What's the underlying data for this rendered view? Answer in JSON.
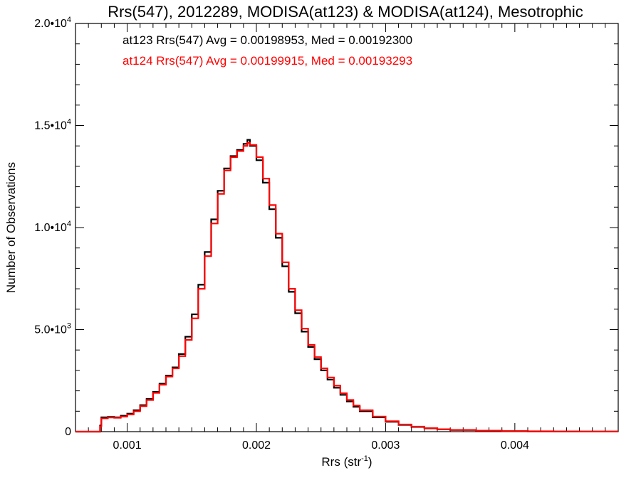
{
  "chart_data": {
    "type": "line",
    "title": "Rrs(547), 2012289, MODISA(at123) & MODISA(at124), Mesotrophic",
    "xlabel": "Rrs (str",
    "xlabel_sup": "-1",
    "xlabel_close": ")",
    "ylabel": "Number of Observations",
    "xlim": [
      0.0006,
      0.0048
    ],
    "ylim": [
      0,
      20000
    ],
    "x_ticks": [
      {
        "value": 0.001,
        "label": "0.001"
      },
      {
        "value": 0.002,
        "label": "0.002"
      },
      {
        "value": 0.003,
        "label": "0.003"
      },
      {
        "value": 0.004,
        "label": "0.004"
      }
    ],
    "y_ticks": [
      {
        "value": 0,
        "mant": "0",
        "exp": ""
      },
      {
        "value": 5000,
        "mant": "5.0•10",
        "exp": "3"
      },
      {
        "value": 10000,
        "mant": "1.0•10",
        "exp": "4"
      },
      {
        "value": 15000,
        "mant": "1.5•10",
        "exp": "4"
      },
      {
        "value": 20000,
        "mant": "2.0•10",
        "exp": "4"
      }
    ],
    "annotations": [
      {
        "text": "at123 Rrs(547) Avg = 0.00198953, Med = 0.00192300",
        "color": "#000000"
      },
      {
        "text": "at124 Rrs(547) Avg = 0.00199915, Med = 0.00193293",
        "color": "#ff0000"
      }
    ],
    "series": [
      {
        "color": "#000000",
        "points": [
          [
            0.0006,
            0
          ],
          [
            0.00078,
            0
          ],
          [
            0.00079,
            300
          ],
          [
            0.0008,
            700
          ],
          [
            0.00085,
            720
          ],
          [
            0.0009,
            700
          ],
          [
            0.00095,
            780
          ],
          [
            0.001,
            880
          ],
          [
            0.00105,
            1050
          ],
          [
            0.0011,
            1300
          ],
          [
            0.00115,
            1600
          ],
          [
            0.0012,
            1950
          ],
          [
            0.00125,
            2350
          ],
          [
            0.0013,
            2750
          ],
          [
            0.00135,
            3150
          ],
          [
            0.0014,
            3800
          ],
          [
            0.00145,
            4650
          ],
          [
            0.0015,
            5750
          ],
          [
            0.00155,
            7200
          ],
          [
            0.0016,
            8800
          ],
          [
            0.00165,
            10400
          ],
          [
            0.0017,
            11800
          ],
          [
            0.00175,
            12900
          ],
          [
            0.0018,
            13500
          ],
          [
            0.00185,
            13800
          ],
          [
            0.0019,
            14100
          ],
          [
            0.00193,
            14300
          ],
          [
            0.00195,
            14000
          ],
          [
            0.002,
            13300
          ],
          [
            0.00205,
            12200
          ],
          [
            0.0021,
            10900
          ],
          [
            0.00215,
            9500
          ],
          [
            0.0022,
            8100
          ],
          [
            0.00225,
            6850
          ],
          [
            0.0023,
            5800
          ],
          [
            0.00235,
            4900
          ],
          [
            0.0024,
            4150
          ],
          [
            0.00245,
            3550
          ],
          [
            0.0025,
            3000
          ],
          [
            0.00255,
            2550
          ],
          [
            0.0026,
            2150
          ],
          [
            0.00265,
            1800
          ],
          [
            0.0027,
            1480
          ],
          [
            0.00275,
            1220
          ],
          [
            0.0028,
            1000
          ],
          [
            0.0029,
            700
          ],
          [
            0.003,
            480
          ],
          [
            0.0031,
            330
          ],
          [
            0.0032,
            230
          ],
          [
            0.0033,
            160
          ],
          [
            0.0034,
            115
          ],
          [
            0.0035,
            80
          ],
          [
            0.0037,
            45
          ],
          [
            0.0039,
            25
          ],
          [
            0.0041,
            15
          ],
          [
            0.0043,
            8
          ],
          [
            0.0045,
            5
          ],
          [
            0.0048,
            2
          ]
        ]
      },
      {
        "color": "#ff0000",
        "points": [
          [
            0.0006,
            0
          ],
          [
            0.00078,
            0
          ],
          [
            0.00079,
            250
          ],
          [
            0.0008,
            650
          ],
          [
            0.00085,
            690
          ],
          [
            0.0009,
            680
          ],
          [
            0.00095,
            740
          ],
          [
            0.001,
            840
          ],
          [
            0.00105,
            1000
          ],
          [
            0.0011,
            1250
          ],
          [
            0.00115,
            1550
          ],
          [
            0.0012,
            1900
          ],
          [
            0.00125,
            2300
          ],
          [
            0.0013,
            2700
          ],
          [
            0.00135,
            3100
          ],
          [
            0.0014,
            3700
          ],
          [
            0.00145,
            4500
          ],
          [
            0.0015,
            5550
          ],
          [
            0.00155,
            7000
          ],
          [
            0.0016,
            8600
          ],
          [
            0.00165,
            10200
          ],
          [
            0.0017,
            11650
          ],
          [
            0.00175,
            12800
          ],
          [
            0.0018,
            13450
          ],
          [
            0.00185,
            13750
          ],
          [
            0.0019,
            14000
          ],
          [
            0.00193,
            14150
          ],
          [
            0.00195,
            14050
          ],
          [
            0.002,
            13450
          ],
          [
            0.00205,
            12400
          ],
          [
            0.0021,
            11100
          ],
          [
            0.00215,
            9700
          ],
          [
            0.0022,
            8300
          ],
          [
            0.00225,
            7000
          ],
          [
            0.0023,
            5950
          ],
          [
            0.00235,
            5050
          ],
          [
            0.0024,
            4250
          ],
          [
            0.00245,
            3650
          ],
          [
            0.0025,
            3100
          ],
          [
            0.00255,
            2650
          ],
          [
            0.0026,
            2250
          ],
          [
            0.00265,
            1880
          ],
          [
            0.0027,
            1550
          ],
          [
            0.00275,
            1280
          ],
          [
            0.0028,
            1050
          ],
          [
            0.0029,
            740
          ],
          [
            0.003,
            510
          ],
          [
            0.0031,
            350
          ],
          [
            0.0032,
            245
          ],
          [
            0.0033,
            170
          ],
          [
            0.0034,
            120
          ],
          [
            0.0035,
            85
          ],
          [
            0.0037,
            48
          ],
          [
            0.0039,
            27
          ],
          [
            0.0041,
            16
          ],
          [
            0.0043,
            9
          ],
          [
            0.0045,
            5
          ],
          [
            0.0048,
            2
          ]
        ]
      }
    ]
  }
}
